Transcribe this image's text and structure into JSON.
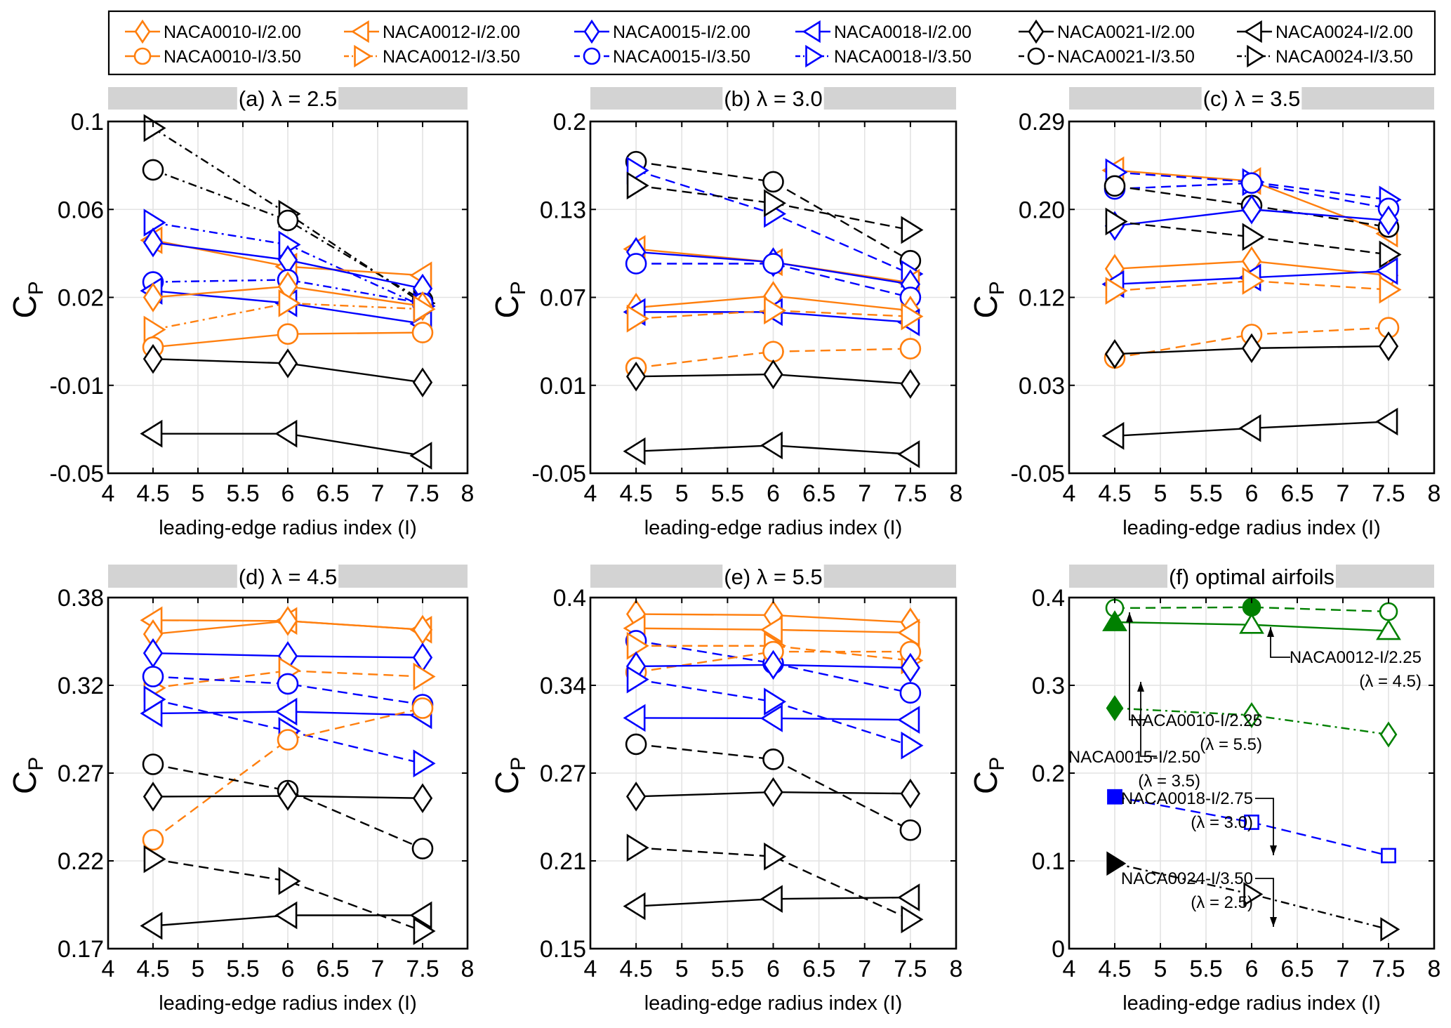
{
  "figure": {
    "xlabel": "leading-edge radius index (I)",
    "ylabel_main": "C",
    "ylabel_sub": "P"
  },
  "styles": {
    "NACA0010-I/2.00": {
      "color": "#ff7f0e",
      "marker": "diamond"
    },
    "NACA0010-I/3.50": {
      "color": "#ff7f0e",
      "marker": "circle"
    },
    "NACA0012-I/2.00": {
      "color": "#ff7f0e",
      "marker": "triangle-left"
    },
    "NACA0012-I/3.50": {
      "color": "#ff7f0e",
      "marker": "triangle-right"
    },
    "NACA0015-I/2.00": {
      "color": "#0000ff",
      "marker": "diamond"
    },
    "NACA0015-I/3.50": {
      "color": "#0000ff",
      "marker": "circle"
    },
    "NACA0018-I/2.00": {
      "color": "#0000ff",
      "marker": "triangle-left"
    },
    "NACA0018-I/3.50": {
      "color": "#0000ff",
      "marker": "triangle-right"
    },
    "NACA0021-I/2.00": {
      "color": "#000000",
      "marker": "diamond"
    },
    "NACA0021-I/3.50": {
      "color": "#000000",
      "marker": "circle"
    },
    "NACA0024-I/2.00": {
      "color": "#000000",
      "marker": "triangle-left"
    },
    "NACA0024-I/3.50": {
      "color": "#000000",
      "marker": "triangle-right"
    }
  },
  "legend": {
    "placement": "top",
    "entries": [
      {
        "label": "NACA0010-I/2.00",
        "linestyle": "solid"
      },
      {
        "label": "NACA0012-I/2.00",
        "linestyle": "solid"
      },
      {
        "label": "NACA0015-I/2.00",
        "linestyle": "solid"
      },
      {
        "label": "NACA0018-I/2.00",
        "linestyle": "solid"
      },
      {
        "label": "NACA0021-I/2.00",
        "linestyle": "solid"
      },
      {
        "label": "NACA0024-I/2.00",
        "linestyle": "solid"
      },
      {
        "label": "NACA0010-I/3.50",
        "linestyle": "solid"
      },
      {
        "label": "NACA0012-I/3.50",
        "linestyle": "dashdot"
      },
      {
        "label": "NACA0015-I/3.50",
        "linestyle": "dashed"
      },
      {
        "label": "NACA0018-I/3.50",
        "linestyle": "dashdot"
      },
      {
        "label": "NACA0021-I/3.50",
        "linestyle": "dashed"
      },
      {
        "label": "NACA0024-I/3.50",
        "linestyle": "dashdot"
      }
    ]
  },
  "chart_data": [
    {
      "type": "line",
      "title": "(a) λ = 2.5",
      "xlabel": "leading-edge radius index (I)",
      "ylabel": "CP",
      "xlim": [
        4,
        8
      ],
      "xticks": [
        "4",
        "4.5",
        "5",
        "5.5",
        "6",
        "6.5",
        "7",
        "7.5",
        "8"
      ],
      "yticks": [
        -0.05,
        -0.01,
        0.02,
        0.06,
        0.1
      ],
      "ytick_labels": [
        "-0.05",
        "-0.01",
        "0.02",
        "0.06",
        "0.1"
      ],
      "grid": true,
      "x": [
        4.5,
        6,
        7.5
      ],
      "series": [
        {
          "name": "NACA0024-I/3.50",
          "linestyle": "dashdot",
          "values": [
            0.097,
            0.058,
            0.018
          ]
        },
        {
          "name": "NACA0021-I/3.50",
          "linestyle": "dashdot",
          "values": [
            0.078,
            0.055,
            0.019
          ]
        },
        {
          "name": "NACA0018-I/3.50",
          "linestyle": "dashdot",
          "values": [
            0.054,
            0.044,
            0.017
          ]
        },
        {
          "name": "NACA0012-I/2.00",
          "linestyle": "solid",
          "values": [
            0.046,
            0.034,
            0.03
          ]
        },
        {
          "name": "NACA0015-I/2.00",
          "linestyle": "solid",
          "values": [
            0.045,
            0.037,
            0.024
          ]
        },
        {
          "name": "NACA0015-I/3.50",
          "linestyle": "dashdot",
          "values": [
            0.027,
            0.028,
            0.018
          ]
        },
        {
          "name": "NACA0018-I/2.00",
          "linestyle": "solid",
          "values": [
            0.023,
            0.018,
            0.011
          ]
        },
        {
          "name": "NACA0010-I/2.00",
          "linestyle": "solid",
          "values": [
            0.02,
            0.025,
            0.017
          ]
        },
        {
          "name": "NACA0012-I/3.50",
          "linestyle": "dashdot",
          "values": [
            0.009,
            0.018,
            0.016
          ]
        },
        {
          "name": "NACA0010-I/3.50",
          "linestyle": "solid",
          "values": [
            0.003,
            0.0075,
            0.008
          ]
        },
        {
          "name": "NACA0021-I/2.00",
          "linestyle": "solid",
          "values": [
            -0.001,
            -0.0025,
            -0.009
          ]
        },
        {
          "name": "NACA0024-I/2.00",
          "linestyle": "solid",
          "values": [
            -0.032,
            -0.032,
            -0.042
          ]
        }
      ]
    },
    {
      "type": "line",
      "title": "(b) λ = 3.0",
      "xlabel": "leading-edge radius index (I)",
      "ylabel": "CP",
      "xlim": [
        4,
        8
      ],
      "xticks": [
        "4",
        "4.5",
        "5",
        "5.5",
        "6",
        "6.5",
        "7",
        "7.5",
        "8"
      ],
      "yticks": [
        -0.05,
        0.01,
        0.07,
        0.13,
        0.2
      ],
      "ytick_labels": [
        "-0.05",
        "0.01",
        "0.07",
        "0.13",
        "0.2"
      ],
      "grid": true,
      "x": [
        4.5,
        6,
        7.5
      ],
      "series": [
        {
          "name": "NACA0021-I/3.50",
          "linestyle": "dashed",
          "values": [
            0.168,
            0.152,
            0.095
          ]
        },
        {
          "name": "NACA0018-I/3.50",
          "linestyle": "dashed",
          "values": [
            0.161,
            0.127,
            0.086
          ]
        },
        {
          "name": "NACA0024-I/3.50",
          "linestyle": "dashed",
          "values": [
            0.149,
            0.135,
            0.116
          ]
        },
        {
          "name": "NACA0012-I/2.00",
          "linestyle": "solid",
          "values": [
            0.103,
            0.094,
            0.08
          ]
        },
        {
          "name": "NACA0015-I/2.00",
          "linestyle": "solid",
          "values": [
            0.101,
            0.094,
            0.079
          ]
        },
        {
          "name": "NACA0015-I/3.50",
          "linestyle": "dashed",
          "values": [
            0.093,
            0.093,
            0.07
          ]
        },
        {
          "name": "NACA0010-I/2.00",
          "linestyle": "solid",
          "values": [
            0.063,
            0.071,
            0.061
          ]
        },
        {
          "name": "NACA0018-I/2.00",
          "linestyle": "solid",
          "values": [
            0.06,
            0.06,
            0.053
          ]
        },
        {
          "name": "NACA0012-I/3.50",
          "linestyle": "dashed",
          "values": [
            0.0555,
            0.061,
            0.057
          ]
        },
        {
          "name": "NACA0010-I/3.50",
          "linestyle": "dashed",
          "values": [
            0.022,
            0.033,
            0.035
          ]
        },
        {
          "name": "NACA0021-I/2.00",
          "linestyle": "solid",
          "values": [
            0.016,
            0.0175,
            0.011
          ]
        },
        {
          "name": "NACA0024-I/2.00",
          "linestyle": "solid",
          "values": [
            -0.035,
            -0.031,
            -0.037
          ]
        }
      ]
    },
    {
      "type": "line",
      "title": "(c) λ = 3.5",
      "xlabel": "leading-edge radius index (I)",
      "ylabel": "CP",
      "xlim": [
        4,
        8
      ],
      "xticks": [
        "4",
        "4.5",
        "5",
        "5.5",
        "6",
        "6.5",
        "7",
        "7.5",
        "8"
      ],
      "yticks": [
        -0.05,
        0.03,
        0.12,
        0.2,
        0.29
      ],
      "ytick_labels": [
        "-0.05",
        "0.03",
        "0.12",
        "0.20",
        "0.29"
      ],
      "grid": true,
      "x": [
        4.5,
        6,
        7.5
      ],
      "series": [
        {
          "name": "NACA0012-I/2.00",
          "linestyle": "solid",
          "values": [
            0.24,
            0.229,
            0.178
          ]
        },
        {
          "name": "NACA0018-I/3.50",
          "linestyle": "dashed",
          "values": [
            0.238,
            0.228,
            0.21
          ]
        },
        {
          "name": "NACA0015-I/3.50",
          "linestyle": "dashed",
          "values": [
            0.221,
            0.227,
            0.201
          ]
        },
        {
          "name": "NACA0021-I/3.50",
          "linestyle": "dashed",
          "values": [
            0.224,
            0.204,
            0.184
          ]
        },
        {
          "name": "NACA0015-I/2.00",
          "linestyle": "solid",
          "values": [
            0.185,
            0.2,
            0.19
          ]
        },
        {
          "name": "NACA0024-I/3.50",
          "linestyle": "dashed",
          "values": [
            0.189,
            0.175,
            0.159
          ]
        },
        {
          "name": "NACA0010-I/2.00",
          "linestyle": "solid",
          "values": [
            0.146,
            0.153,
            0.14
          ]
        },
        {
          "name": "NACA0018-I/2.00",
          "linestyle": "solid",
          "values": [
            0.132,
            0.138,
            0.144
          ]
        },
        {
          "name": "NACA0012-I/3.50",
          "linestyle": "dashed",
          "values": [
            0.126,
            0.135,
            0.127
          ]
        },
        {
          "name": "NACA0010-I/3.50",
          "linestyle": "dashed",
          "values": [
            0.058,
            0.082,
            0.089
          ]
        },
        {
          "name": "NACA0021-I/2.00",
          "linestyle": "solid",
          "values": [
            0.062,
            0.068,
            0.07
          ]
        },
        {
          "name": "NACA0024-I/2.00",
          "linestyle": "solid",
          "values": [
            -0.016,
            -0.009,
            -0.003
          ]
        }
      ]
    },
    {
      "type": "line",
      "title": "(d) λ = 4.5",
      "xlabel": "leading-edge radius index (I)",
      "ylabel": "CP",
      "xlim": [
        4,
        8
      ],
      "xticks": [
        "4",
        "4.5",
        "5",
        "5.5",
        "6",
        "6.5",
        "7",
        "7.5",
        "8"
      ],
      "yticks": [
        0.17,
        0.22,
        0.27,
        0.32,
        0.38
      ],
      "ytick_labels": [
        "0.17",
        "0.22",
        "0.27",
        "0.32",
        "0.38"
      ],
      "grid": true,
      "x": [
        4.5,
        6,
        7.5
      ],
      "series": [
        {
          "name": "NACA0012-I/2.00",
          "linestyle": "solid",
          "values": [
            0.3645,
            0.364,
            0.358
          ]
        },
        {
          "name": "NACA0010-I/2.00",
          "linestyle": "solid",
          "values": [
            0.355,
            0.364,
            0.358
          ]
        },
        {
          "name": "NACA0015-I/2.00",
          "linestyle": "solid",
          "values": [
            0.342,
            0.34,
            0.339
          ]
        },
        {
          "name": "NACA0012-I/3.50",
          "linestyle": "dashed",
          "values": [
            0.3185,
            0.33,
            0.326
          ]
        },
        {
          "name": "NACA0015-I/3.50",
          "linestyle": "dashed",
          "values": [
            0.326,
            0.321,
            0.309
          ]
        },
        {
          "name": "NACA0018-I/3.50",
          "linestyle": "dashed",
          "values": [
            0.312,
            0.294,
            0.2755
          ]
        },
        {
          "name": "NACA0018-I/2.00",
          "linestyle": "solid",
          "values": [
            0.304,
            0.305,
            0.303
          ]
        },
        {
          "name": "NACA0010-I/3.50",
          "linestyle": "dashed",
          "values": [
            0.232,
            0.289,
            0.307
          ]
        },
        {
          "name": "NACA0021-I/3.50",
          "linestyle": "dashed",
          "values": [
            0.275,
            0.26,
            0.227
          ]
        },
        {
          "name": "NACA0021-I/2.00",
          "linestyle": "solid",
          "values": [
            0.2566,
            0.257,
            0.2557
          ]
        },
        {
          "name": "NACA0024-I/3.50",
          "linestyle": "dashed",
          "values": [
            0.221,
            0.2085,
            0.18
          ]
        },
        {
          "name": "NACA0024-I/2.00",
          "linestyle": "solid",
          "values": [
            0.183,
            0.189,
            0.189
          ]
        }
      ]
    },
    {
      "type": "line",
      "title": "(e) λ = 5.5",
      "xlabel": "leading-edge radius index (I)",
      "ylabel": "CP",
      "xlim": [
        4,
        8
      ],
      "xticks": [
        "4",
        "4.5",
        "5",
        "5.5",
        "6",
        "6.5",
        "7",
        "7.5",
        "8"
      ],
      "yticks": [
        0.15,
        0.21,
        0.27,
        0.34,
        0.4
      ],
      "ytick_labels": [
        "0.15",
        "0.21",
        "0.27",
        "0.34",
        "0.4"
      ],
      "grid": true,
      "x": [
        4.5,
        6,
        7.5
      ],
      "series": [
        {
          "name": "NACA0010-I/2.00",
          "linestyle": "solid",
          "values": [
            0.3887,
            0.388,
            0.383
          ]
        },
        {
          "name": "NACA0012-I/2.00",
          "linestyle": "solid",
          "values": [
            0.379,
            0.378,
            0.376
          ]
        },
        {
          "name": "NACA0015-I/3.50",
          "linestyle": "dashed",
          "values": [
            0.3705,
            0.355,
            0.334
          ]
        },
        {
          "name": "NACA0012-I/3.50",
          "linestyle": "dashed",
          "values": [
            0.367,
            0.367,
            0.357
          ]
        },
        {
          "name": "NACA0010-I/3.50",
          "linestyle": "dashed",
          "values": [
            0.349,
            0.363,
            0.363
          ]
        },
        {
          "name": "NACA0015-I/2.00",
          "linestyle": "solid",
          "values": [
            0.353,
            0.354,
            0.352
          ]
        },
        {
          "name": "NACA0018-I/3.50",
          "linestyle": "dashed",
          "values": [
            0.344,
            0.327,
            0.292
          ]
        },
        {
          "name": "NACA0018-I/2.00",
          "linestyle": "solid",
          "values": [
            0.314,
            0.3137,
            0.3125
          ]
        },
        {
          "name": "NACA0021-I/3.50",
          "linestyle": "dashed",
          "values": [
            0.293,
            0.281,
            0.231
          ]
        },
        {
          "name": "NACA0021-I/2.00",
          "linestyle": "solid",
          "values": [
            0.254,
            0.257,
            0.256
          ]
        },
        {
          "name": "NACA0024-I/3.50",
          "linestyle": "dashed",
          "values": [
            0.219,
            0.213,
            0.17
          ]
        },
        {
          "name": "NACA0024-I/2.00",
          "linestyle": "solid",
          "values": [
            0.179,
            0.184,
            0.185
          ]
        }
      ]
    },
    {
      "type": "line",
      "title": "(f) optimal airfoils",
      "xlabel": "leading-edge radius index (I)",
      "ylabel": "CP",
      "xlim": [
        4,
        8
      ],
      "xticks": [
        "4",
        "4.5",
        "5",
        "5.5",
        "6",
        "6.5",
        "7",
        "7.5",
        "8"
      ],
      "yticks": [
        0,
        0.1,
        0.2,
        0.3,
        0.4
      ],
      "ytick_labels": [
        "0",
        "0.1",
        "0.2",
        "0.3",
        "0.4"
      ],
      "grid": true,
      "x": [
        4.5,
        6,
        7.5
      ],
      "series": [
        {
          "name": "NACA0010-I/2.25",
          "lambda": "λ = 5.5",
          "color": "#008000",
          "marker": "circle",
          "linestyle": "dashed",
          "filled_index": 1,
          "values": [
            0.388,
            0.389,
            0.384
          ]
        },
        {
          "name": "NACA0012-I/2.25",
          "lambda": "λ = 4.5",
          "color": "#008000",
          "marker": "triangle-up",
          "linestyle": "solid",
          "filled_index": 0,
          "values": [
            0.372,
            0.369,
            0.362
          ]
        },
        {
          "name": "NACA0015-I/2.50",
          "lambda": "λ = 3.5",
          "color": "#008000",
          "marker": "diamond",
          "linestyle": "dashdot",
          "filled_index": 0,
          "values": [
            0.274,
            0.266,
            0.244
          ]
        },
        {
          "name": "NACA0018-I/2.75",
          "lambda": "λ = 3.0",
          "color": "#0000ff",
          "marker": "square",
          "linestyle": "dashed",
          "filled_index": 0,
          "values": [
            0.173,
            0.144,
            0.106
          ]
        },
        {
          "name": "NACA0024-I/3.50",
          "lambda": "λ = 2.5",
          "color": "#000000",
          "marker": "triangle-right",
          "linestyle": "dashdot",
          "filled_index": 0,
          "values": [
            0.097,
            0.062,
            0.022
          ]
        }
      ],
      "annotations": [
        {
          "line1": "NACA0010-I/2.25",
          "line2": "(λ = 5.5)"
        },
        {
          "line1": "NACA0012-I/2.25",
          "line2": "(λ = 4.5)"
        },
        {
          "line1": "NACA0015-I/2.50",
          "line2": "(λ = 3.5)"
        },
        {
          "line1": "NACA0018-I/2.75",
          "line2": "(λ = 3.0)"
        },
        {
          "line1": "NACA0024-I/3.50",
          "line2": "(λ = 2.5)"
        }
      ]
    }
  ]
}
